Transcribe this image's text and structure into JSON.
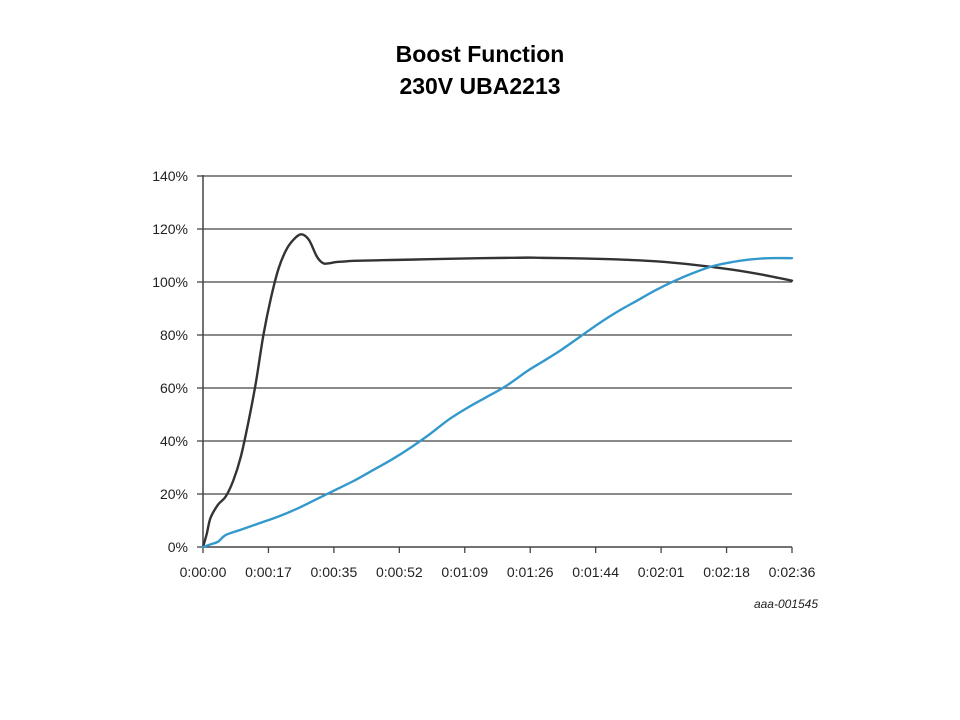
{
  "title_lines": [
    "Boost Function",
    "230V UBA2213"
  ],
  "figure_code": "aaa-001545",
  "chart_data": {
    "type": "line",
    "title": "Boost Function 230V UBA2213",
    "xlabel": "",
    "ylabel": "",
    "x_tick_labels": [
      "0:00:00",
      "0:00:17",
      "0:00:35",
      "0:00:52",
      "0:01:09",
      "0:01:26",
      "0:01:44",
      "0:02:01",
      "0:02:18",
      "0:02:36"
    ],
    "y_tick_labels": [
      "0%",
      "20%",
      "40%",
      "60%",
      "80%",
      "100%",
      "120%",
      "140%"
    ],
    "ylim": [
      0,
      140
    ],
    "grid": "horizontal",
    "legend": "none",
    "x_unit": "seconds",
    "xlim": [
      0,
      156
    ],
    "series": [
      {
        "color": "#333333",
        "x": [
          0,
          1,
          2,
          4,
          6,
          8,
          10,
          12,
          14,
          16,
          18,
          20,
          22,
          24,
          26,
          28,
          30,
          31,
          32,
          33,
          34,
          35,
          36,
          38,
          40,
          50,
          60,
          70,
          80,
          86,
          90,
          100,
          110,
          120,
          130,
          140,
          148,
          156
        ],
        "y": [
          0,
          5,
          11,
          16,
          19,
          25,
          34,
          47,
          62,
          80,
          94,
          105,
          112,
          116,
          118,
          116,
          110,
          108,
          107,
          107,
          107.2,
          107.5,
          107.6,
          107.8,
          108,
          108.3,
          108.6,
          108.9,
          109.1,
          109.2,
          109.1,
          108.9,
          108.5,
          107.8,
          106.5,
          104.7,
          102.8,
          100.5
        ]
      },
      {
        "color": "#3399cc",
        "x": [
          0,
          2,
          4,
          6,
          10,
          15,
          20,
          25,
          30,
          35,
          40,
          45,
          50,
          55,
          60,
          65,
          70,
          75,
          80,
          86,
          90,
          95,
          100,
          105,
          110,
          115,
          120,
          125,
          130,
          135,
          140,
          145,
          150,
          156
        ],
        "y": [
          0,
          1,
          2,
          4.5,
          6.5,
          9,
          11.5,
          14.5,
          18,
          21.5,
          25,
          29,
          33,
          37.5,
          42.5,
          48,
          52.5,
          56.5,
          60.5,
          66.5,
          70,
          74.5,
          79.5,
          84.5,
          89,
          93,
          97,
          100.5,
          103.5,
          106,
          107.5,
          108.5,
          109,
          109
        ]
      }
    ]
  }
}
